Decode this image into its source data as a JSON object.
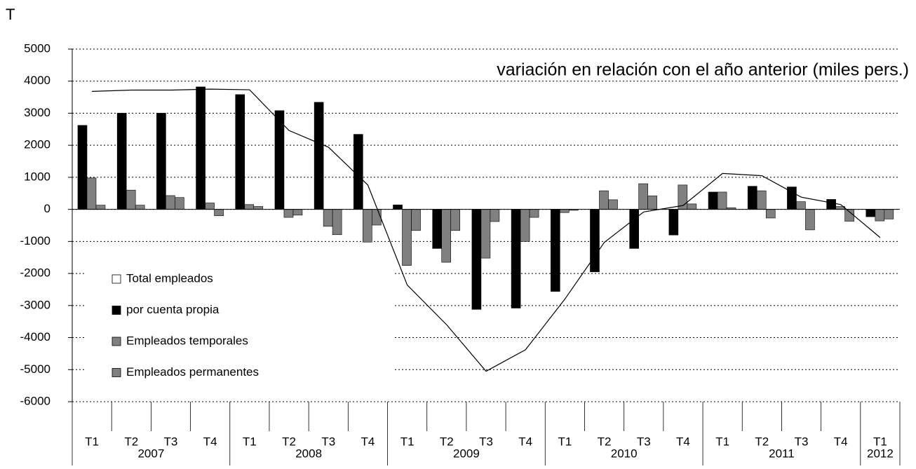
{
  "chart_data": {
    "type": "bar",
    "title": "T",
    "annotation": "variación en relación con el año anterior (miles pers.)",
    "categories": [
      "T1",
      "T2",
      "T3",
      "T4",
      "T1",
      "T2",
      "T3",
      "T4",
      "T1",
      "T2",
      "T3",
      "T4",
      "T1",
      "T2",
      "T3",
      "T4",
      "T1",
      "T2",
      "T3",
      "T4",
      "T1"
    ],
    "years": [
      "2007",
      null,
      null,
      null,
      "2008",
      null,
      null,
      null,
      "2009",
      null,
      null,
      null,
      "2010",
      null,
      null,
      null,
      "2011",
      null,
      null,
      null,
      "2012"
    ],
    "series": [
      {
        "name": "Total empleados",
        "type": "line",
        "color": "#000000",
        "values": [
          3680,
          3720,
          3720,
          3750,
          3730,
          2460,
          1940,
          760,
          -2360,
          -3600,
          -5050,
          -4380,
          -2800,
          -1030,
          -80,
          120,
          1120,
          1050,
          380,
          150,
          -880
        ]
      },
      {
        "name": "por cuenta propia",
        "color": "#000000",
        "values": [
          2620,
          3000,
          3000,
          3820,
          3580,
          3080,
          3340,
          2340,
          140,
          -1220,
          -3120,
          -3080,
          -2560,
          -1950,
          -1220,
          -800,
          540,
          720,
          700,
          310,
          -230
        ]
      },
      {
        "name": "Empleados temporales",
        "color": "#808080",
        "values": [
          980,
          600,
          430,
          200,
          150,
          -250,
          -530,
          -1020,
          -1750,
          -1650,
          -1520,
          -1000,
          -100,
          580,
          800,
          760,
          540,
          580,
          240,
          90,
          -360
        ]
      },
      {
        "name": "Empleados permanentes",
        "color": "#808080",
        "values": [
          130,
          130,
          370,
          -200,
          90,
          -180,
          -790,
          -490,
          -660,
          -660,
          -380,
          -250,
          -30,
          300,
          420,
          170,
          50,
          -270,
          -640,
          -370,
          -300
        ]
      }
    ],
    "ylim": [
      -6000,
      5000
    ],
    "yticks": [
      -6000,
      -5000,
      -4000,
      -3000,
      -2000,
      -1000,
      0,
      1000,
      2000,
      3000,
      4000,
      5000
    ],
    "grid": true
  }
}
